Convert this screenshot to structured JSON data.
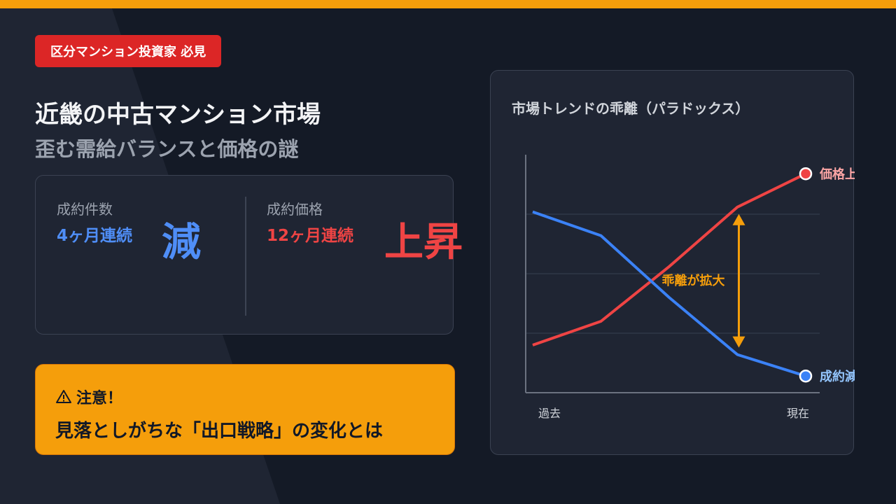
{
  "badge": {
    "label": "区分マンション投資家 必見"
  },
  "headline": {
    "title": "近畿の中古マンション市場",
    "subtitle": "歪む需給バランスと価格の謎"
  },
  "stats": {
    "deals": {
      "label": "成約件数",
      "period": "4ヶ月連続",
      "trend": "減",
      "color": "#4f8ef7"
    },
    "price": {
      "label": "成約価格",
      "period": "12ヶ月連続",
      "trend": "上昇",
      "color": "#ef4444"
    }
  },
  "warning": {
    "icon": "warning-triangle-icon",
    "heading": "注意！",
    "text": "見落としがちな「出口戦略」の変化とは"
  },
  "chart_data": {
    "type": "line",
    "title": "市場トレンドの乖離（パラドックス）",
    "x": [
      "過去",
      "",
      "",
      "",
      "現在"
    ],
    "x_ticks": [
      "過去",
      "現在"
    ],
    "series": [
      {
        "name": "価格上昇",
        "values": [
          20,
          30,
          53,
          78,
          92
        ],
        "color": "#ef4444"
      },
      {
        "name": "成約減",
        "values": [
          76,
          66,
          40,
          16,
          7
        ],
        "color": "#3b82f6"
      }
    ],
    "ylim": [
      0,
      100
    ],
    "annotation": {
      "label": "乖離が拡大",
      "color": "#f59e0b"
    },
    "grid": true
  },
  "colors": {
    "accent": "#f59e0b",
    "badge": "#dc2626",
    "background": "#141a26",
    "card": "#1f2533"
  }
}
